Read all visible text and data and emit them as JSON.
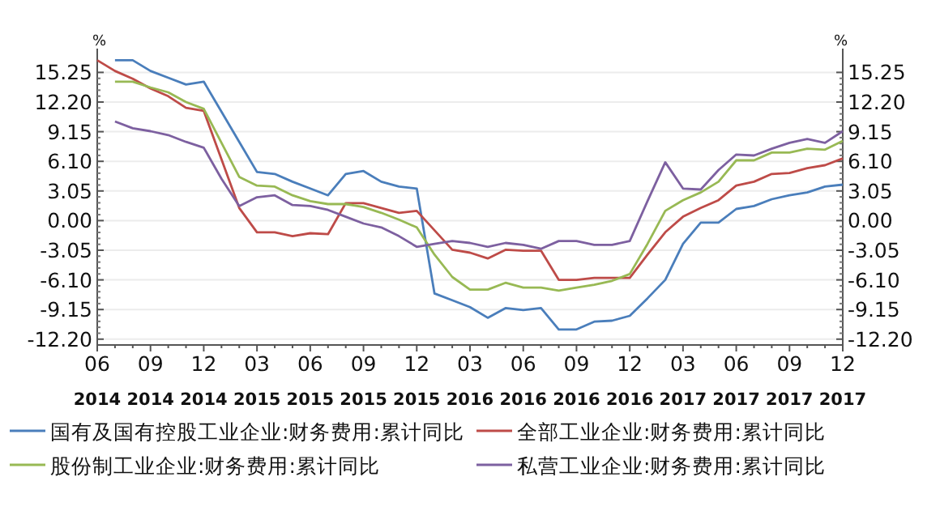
{
  "chart_data": {
    "type": "line",
    "ylabel": "%",
    "y2label": "%",
    "categories": [
      "06\n2014",
      null,
      null,
      "09\n2014",
      null,
      null,
      "12\n2014",
      null,
      null,
      "03\n2015",
      null,
      null,
      "06\n2015",
      null,
      null,
      "09\n2015",
      null,
      null,
      "12\n2015",
      null,
      null,
      "03\n2016",
      null,
      null,
      "06\n2016",
      null,
      null,
      "09\n2016",
      null,
      null,
      "12\n2016",
      null,
      null,
      "03\n2017",
      null,
      null,
      "06\n2017",
      null,
      null,
      "09\n2017",
      null,
      null,
      "12\n2017"
    ],
    "series": [
      {
        "name": "国有及国有控股工业企业:财务费用:累计同比",
        "color": "#4a7ebb",
        "values": [
          null,
          16.5,
          16.5,
          15.4,
          14.7,
          14.0,
          14.3,
          11.2,
          8.1,
          5.0,
          4.8,
          4.0,
          3.3,
          2.6,
          4.8,
          5.1,
          4.0,
          3.5,
          3.3,
          -7.5,
          -8.2,
          -8.9,
          -10.0,
          -9.0,
          -9.2,
          -9.0,
          -11.2,
          -11.2,
          -10.4,
          -10.3,
          -9.8,
          -8.0,
          -6.1,
          -2.4,
          -0.2,
          -0.2,
          1.2,
          1.5,
          2.2,
          2.6,
          2.9,
          3.5,
          3.7
        ]
      },
      {
        "name": "全部工业企业:财务费用:累计同比",
        "color": "#be4b48",
        "values": [
          16.5,
          15.4,
          14.6,
          13.6,
          12.8,
          11.6,
          11.3,
          6.3,
          1.3,
          -1.2,
          -1.2,
          -1.6,
          -1.3,
          -1.4,
          1.8,
          1.8,
          1.3,
          0.8,
          1.0,
          -1.0,
          -3.0,
          -3.3,
          -3.9,
          -3.0,
          -3.1,
          -3.1,
          -6.1,
          -6.1,
          -5.9,
          -5.9,
          -5.9,
          -3.5,
          -1.2,
          0.4,
          1.3,
          2.1,
          3.6,
          4.0,
          4.8,
          4.9,
          5.4,
          5.7,
          6.4
        ]
      },
      {
        "name": "股份制工业企业:财务费用:累计同比",
        "color": "#98b954",
        "values": [
          null,
          14.3,
          14.3,
          13.7,
          13.2,
          12.2,
          11.5,
          8.0,
          4.5,
          3.6,
          3.5,
          2.6,
          2.0,
          1.7,
          1.7,
          1.4,
          0.8,
          0.1,
          -0.7,
          -3.5,
          -5.8,
          -7.1,
          -7.1,
          -6.4,
          -6.9,
          -6.9,
          -7.2,
          -6.9,
          -6.6,
          -6.2,
          -5.5,
          -2.4,
          1.0,
          2.1,
          2.9,
          4.0,
          6.2,
          6.2,
          7.0,
          7.0,
          7.4,
          7.3,
          8.2
        ]
      },
      {
        "name": "私营工业企业:财务费用:累计同比",
        "color": "#7d60a0",
        "values": [
          null,
          10.2,
          9.5,
          9.2,
          8.8,
          8.1,
          7.5,
          4.3,
          1.5,
          2.4,
          2.6,
          1.6,
          1.5,
          1.1,
          0.4,
          -0.3,
          -0.7,
          -1.6,
          -2.7,
          -2.4,
          -2.1,
          -2.3,
          -2.7,
          -2.3,
          -2.5,
          -2.9,
          -2.1,
          -2.1,
          -2.5,
          -2.5,
          -2.1,
          2.0,
          6.0,
          3.3,
          3.2,
          5.2,
          6.8,
          6.7,
          7.4,
          8.0,
          8.4,
          8.0,
          9.2
        ]
      }
    ],
    "ylim": [
      -12.8,
      17.7
    ],
    "yticks": [
      {
        "value": -12.2,
        "label": "-12.20"
      },
      {
        "value": -9.15,
        "label": "-9.15"
      },
      {
        "value": -6.1,
        "label": "-6.10"
      },
      {
        "value": -3.05,
        "label": "-3.05"
      },
      {
        "value": 0,
        "label": "0.00"
      },
      3.05,
      {
        "value": 6.1,
        "label": "6.10"
      },
      9.15,
      {
        "value": 12.2,
        "label": "12.20"
      },
      15.25
    ],
    "y2lim": [
      -12.8,
      17.7
    ],
    "y2ticks": [
      {
        "value": -12.2,
        "label": "-12.20"
      },
      {
        "value": -9.15,
        "label": "-9.15"
      },
      {
        "value": -6.1,
        "label": "-6.10"
      },
      {
        "value": -3.05,
        "label": "-3.05"
      },
      {
        "value": 0,
        "label": "0.00"
      },
      3.05,
      {
        "value": 6.1,
        "label": "6.10"
      },
      9.15,
      {
        "value": 12.2,
        "label": "12.20"
      },
      15.25
    ],
    "grid": "y",
    "legend": "bottom",
    "line_style": "solid",
    "marker": "none"
  }
}
